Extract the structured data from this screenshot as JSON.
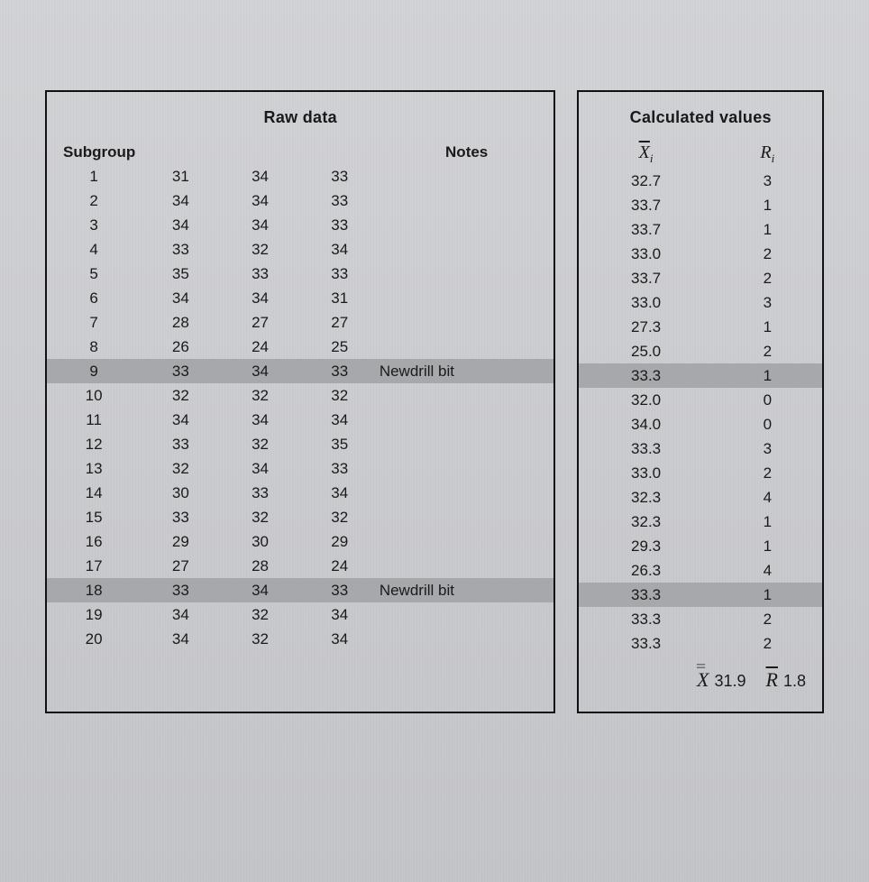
{
  "left": {
    "title": "Raw data",
    "head": {
      "subgroup": "Subgroup",
      "notes": "Notes"
    },
    "rows": [
      {
        "sg": "1",
        "a": "31",
        "b": "34",
        "c": "33",
        "note": "",
        "hl": false
      },
      {
        "sg": "2",
        "a": "34",
        "b": "34",
        "c": "33",
        "note": "",
        "hl": false
      },
      {
        "sg": "3",
        "a": "34",
        "b": "34",
        "c": "33",
        "note": "",
        "hl": false
      },
      {
        "sg": "4",
        "a": "33",
        "b": "32",
        "c": "34",
        "note": "",
        "hl": false
      },
      {
        "sg": "5",
        "a": "35",
        "b": "33",
        "c": "33",
        "note": "",
        "hl": false
      },
      {
        "sg": "6",
        "a": "34",
        "b": "34",
        "c": "31",
        "note": "",
        "hl": false
      },
      {
        "sg": "7",
        "a": "28",
        "b": "27",
        "c": "27",
        "note": "",
        "hl": false
      },
      {
        "sg": "8",
        "a": "26",
        "b": "24",
        "c": "25",
        "note": "",
        "hl": false
      },
      {
        "sg": "9",
        "a": "33",
        "b": "34",
        "c": "33",
        "note": "Newdrill bit",
        "hl": true
      },
      {
        "sg": "10",
        "a": "32",
        "b": "32",
        "c": "32",
        "note": "",
        "hl": false
      },
      {
        "sg": "11",
        "a": "34",
        "b": "34",
        "c": "34",
        "note": "",
        "hl": false
      },
      {
        "sg": "12",
        "a": "33",
        "b": "32",
        "c": "35",
        "note": "",
        "hl": false
      },
      {
        "sg": "13",
        "a": "32",
        "b": "34",
        "c": "33",
        "note": "",
        "hl": false
      },
      {
        "sg": "14",
        "a": "30",
        "b": "33",
        "c": "34",
        "note": "",
        "hl": false
      },
      {
        "sg": "15",
        "a": "33",
        "b": "32",
        "c": "32",
        "note": "",
        "hl": false
      },
      {
        "sg": "16",
        "a": "29",
        "b": "30",
        "c": "29",
        "note": "",
        "hl": false
      },
      {
        "sg": "17",
        "a": "27",
        "b": "28",
        "c": "24",
        "note": "",
        "hl": false
      },
      {
        "sg": "18",
        "a": "33",
        "b": "34",
        "c": "33",
        "note": "Newdrill bit",
        "hl": true
      },
      {
        "sg": "19",
        "a": "34",
        "b": "32",
        "c": "34",
        "note": "",
        "hl": false
      },
      {
        "sg": "20",
        "a": "34",
        "b": "32",
        "c": "34",
        "note": "",
        "hl": false
      }
    ]
  },
  "right": {
    "title": "Calculated values",
    "rows": [
      {
        "x": "32.7",
        "r": "3",
        "hl": false
      },
      {
        "x": "33.7",
        "r": "1",
        "hl": false
      },
      {
        "x": "33.7",
        "r": "1",
        "hl": false
      },
      {
        "x": "33.0",
        "r": "2",
        "hl": false
      },
      {
        "x": "33.7",
        "r": "2",
        "hl": false
      },
      {
        "x": "33.0",
        "r": "3",
        "hl": false
      },
      {
        "x": "27.3",
        "r": "1",
        "hl": false
      },
      {
        "x": "25.0",
        "r": "2",
        "hl": false
      },
      {
        "x": "33.3",
        "r": "1",
        "hl": true
      },
      {
        "x": "32.0",
        "r": "0",
        "hl": false
      },
      {
        "x": "34.0",
        "r": "0",
        "hl": false
      },
      {
        "x": "33.3",
        "r": "3",
        "hl": false
      },
      {
        "x": "33.0",
        "r": "2",
        "hl": false
      },
      {
        "x": "32.3",
        "r": "4",
        "hl": false
      },
      {
        "x": "32.3",
        "r": "1",
        "hl": false
      },
      {
        "x": "29.3",
        "r": "1",
        "hl": false
      },
      {
        "x": "26.3",
        "r": "4",
        "hl": false
      },
      {
        "x": "33.3",
        "r": "1",
        "hl": true
      },
      {
        "x": "33.3",
        "r": "2",
        "hl": false
      },
      {
        "x": "33.3",
        "r": "2",
        "hl": false
      }
    ],
    "summary": {
      "xbarbar": "31.9",
      "rbar": "1.8"
    }
  },
  "style": {
    "highlight_color": "#a7a8ab",
    "border_color": "#111111",
    "bg_color": "#c8c9cc",
    "font_family": "Arial",
    "base_fontsize": 18
  }
}
